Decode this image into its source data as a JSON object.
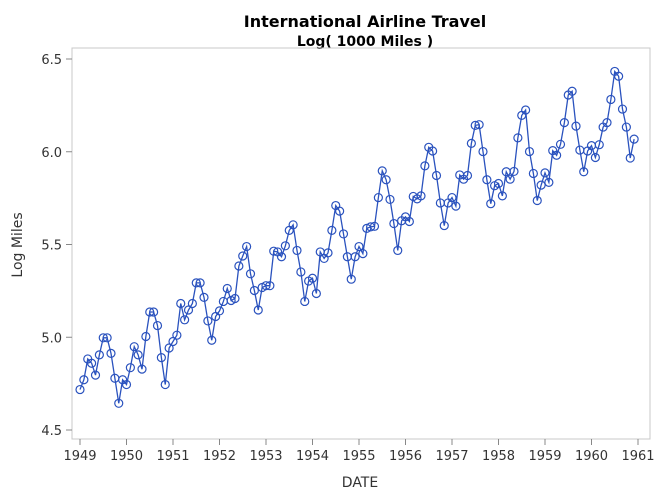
{
  "chart_data": {
    "type": "line",
    "title": "International Airline Travel",
    "subtitle": "Log( 1000 Miles )",
    "xlabel": "DATE",
    "ylabel": "Log Miles",
    "xlim": [
      1949,
      1961
    ],
    "ylim": [
      4.5,
      6.5
    ],
    "x_ticks": [
      "1949",
      "1950",
      "1951",
      "1952",
      "1953",
      "1954",
      "1955",
      "1956",
      "1957",
      "1958",
      "1959",
      "1960",
      "1961"
    ],
    "y_ticks": [
      "4.5",
      "5.0",
      "5.5",
      "6.0",
      "6.5"
    ],
    "grid": false,
    "markers": "open-circle",
    "interval": "month",
    "color": "#2A52BE",
    "series_by_year": [
      {
        "year": 1949,
        "values": [
          4.718,
          4.771,
          4.883,
          4.86,
          4.796,
          4.905,
          4.997,
          4.997,
          4.913,
          4.779,
          4.644,
          4.771
        ]
      },
      {
        "year": 1950,
        "values": [
          4.745,
          4.836,
          4.949,
          4.905,
          4.828,
          5.004,
          5.136,
          5.136,
          5.063,
          4.89,
          4.745,
          4.942
        ]
      },
      {
        "year": 1951,
        "values": [
          4.977,
          5.011,
          5.182,
          5.094,
          5.147,
          5.182,
          5.293,
          5.293,
          5.215,
          5.088,
          4.984,
          5.112
        ]
      },
      {
        "year": 1952,
        "values": [
          5.142,
          5.193,
          5.263,
          5.198,
          5.209,
          5.384,
          5.438,
          5.489,
          5.342,
          5.252,
          5.147,
          5.268
        ]
      },
      {
        "year": 1953,
        "values": [
          5.278,
          5.278,
          5.464,
          5.46,
          5.434,
          5.493,
          5.576,
          5.606,
          5.468,
          5.352,
          5.193,
          5.303
        ]
      },
      {
        "year": 1954,
        "values": [
          5.318,
          5.236,
          5.46,
          5.425,
          5.455,
          5.576,
          5.71,
          5.68,
          5.557,
          5.434,
          5.313,
          5.434
        ]
      },
      {
        "year": 1955,
        "values": [
          5.489,
          5.451,
          5.587,
          5.595,
          5.598,
          5.753,
          5.897,
          5.849,
          5.743,
          5.613,
          5.468,
          5.628
        ]
      },
      {
        "year": 1956,
        "values": [
          5.649,
          5.624,
          5.759,
          5.746,
          5.762,
          5.924,
          6.024,
          6.004,
          5.872,
          5.724,
          5.602,
          5.724
        ]
      },
      {
        "year": 1957,
        "values": [
          5.753,
          5.707,
          5.875,
          5.852,
          5.872,
          6.045,
          6.142,
          6.146,
          6.001,
          5.849,
          5.72,
          5.817
        ]
      },
      {
        "year": 1958,
        "values": [
          5.829,
          5.762,
          5.892,
          5.852,
          5.894,
          6.075,
          6.196,
          6.225,
          6.001,
          5.883,
          5.737,
          5.82
        ]
      },
      {
        "year": 1959,
        "values": [
          5.886,
          5.835,
          6.006,
          5.981,
          6.04,
          6.157,
          6.306,
          6.326,
          6.138,
          6.009,
          5.892,
          6.004
        ]
      },
      {
        "year": 1960,
        "values": [
          6.033,
          5.969,
          6.038,
          6.133,
          6.157,
          6.282,
          6.433,
          6.407,
          6.23,
          6.133,
          5.966,
          6.068
        ]
      }
    ]
  }
}
